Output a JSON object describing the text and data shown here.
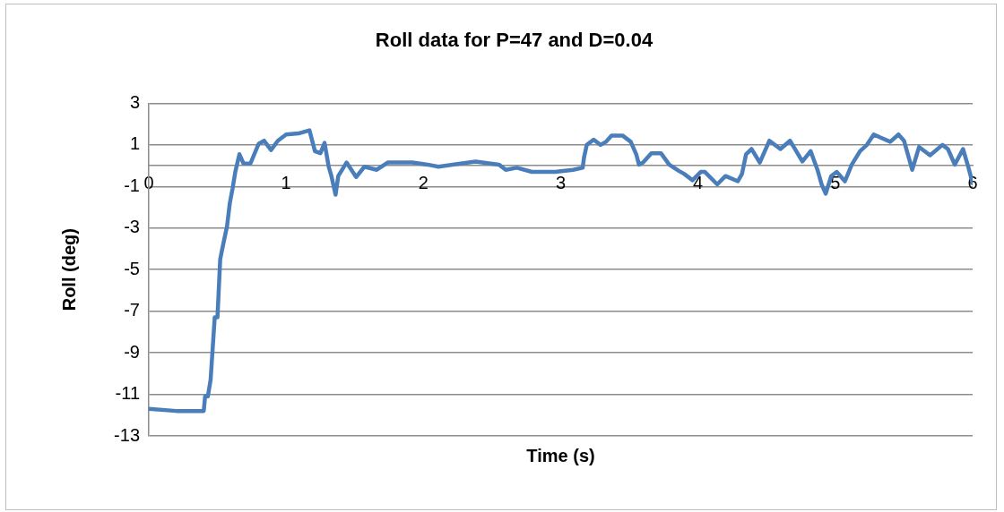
{
  "chart_data": {
    "type": "line",
    "title": "Roll data for P=47 and D=0.04",
    "xlabel": "Time (s)",
    "ylabel": "Roll (deg)",
    "xlim": [
      0,
      6
    ],
    "xticks": [
      0,
      1,
      2,
      3,
      4,
      5,
      6
    ],
    "ylim": [
      -13,
      3
    ],
    "yticks": [
      -13,
      -11,
      -9,
      -7,
      -5,
      -3,
      -1,
      1,
      3
    ],
    "grid": "y",
    "legend": false,
    "marker": "none",
    "line_style": "solid",
    "series": [
      {
        "color": "#4a7ebb",
        "x": [
          0,
          0.2,
          0.4,
          0.41,
          0.43,
          0.45,
          0.48,
          0.5,
          0.52,
          0.535,
          0.57,
          0.59,
          0.61,
          0.63,
          0.66,
          0.69,
          0.74,
          0.8,
          0.84,
          0.89,
          0.94,
          1.0,
          1.09,
          1.17,
          1.21,
          1.25,
          1.28,
          1.31,
          1.33,
          1.36,
          1.38,
          1.44,
          1.51,
          1.57,
          1.66,
          1.74,
          1.92,
          2.03,
          2.11,
          2.38,
          2.55,
          2.6,
          2.68,
          2.79,
          2.96,
          3.09,
          3.16,
          3.17,
          3.19,
          3.24,
          3.29,
          3.33,
          3.37,
          3.45,
          3.51,
          3.55,
          3.57,
          3.6,
          3.66,
          3.73,
          3.79,
          3.86,
          3.9,
          3.96,
          4.02,
          4.05,
          4.14,
          4.2,
          4.29,
          4.32,
          4.35,
          4.39,
          4.45,
          4.52,
          4.6,
          4.67,
          4.76,
          4.82,
          4.87,
          4.9,
          4.93,
          4.97,
          5.01,
          5.07,
          5.12,
          5.18,
          5.23,
          5.28,
          5.33,
          5.4,
          5.46,
          5.5,
          5.56,
          5.61,
          5.69,
          5.78,
          5.82,
          5.87,
          5.93,
          5.97,
          6.0
        ],
        "values": [
          -11.7,
          -11.8,
          -11.8,
          -11.1,
          -11.1,
          -10.3,
          -7.3,
          -7.3,
          -4.5,
          -4.0,
          -2.9,
          -1.8,
          -1.1,
          -0.3,
          0.55,
          0.1,
          0.1,
          1.05,
          1.2,
          0.75,
          1.2,
          1.5,
          1.55,
          1.7,
          0.7,
          0.6,
          1.1,
          -0.05,
          -0.5,
          -1.4,
          -0.5,
          0.15,
          -0.55,
          -0.05,
          -0.2,
          0.15,
          0.15,
          0.05,
          -0.05,
          0.2,
          0.05,
          -0.2,
          -0.1,
          -0.3,
          -0.3,
          -0.2,
          -0.1,
          0.4,
          1.0,
          1.25,
          1.0,
          1.15,
          1.45,
          1.45,
          1.15,
          0.55,
          0.05,
          0.15,
          0.6,
          0.6,
          0.05,
          -0.25,
          -0.4,
          -0.7,
          -0.3,
          -0.3,
          -0.9,
          -0.5,
          -0.75,
          -0.4,
          0.55,
          0.8,
          0.15,
          1.2,
          0.8,
          1.2,
          0.2,
          0.7,
          -0.2,
          -0.9,
          -1.35,
          -0.5,
          -0.3,
          -0.75,
          0.05,
          0.7,
          1.0,
          1.5,
          1.35,
          1.15,
          1.5,
          1.2,
          -0.2,
          0.9,
          0.5,
          1.0,
          0.8,
          0.05,
          0.8,
          -0.1,
          -0.85
        ]
      }
    ]
  }
}
